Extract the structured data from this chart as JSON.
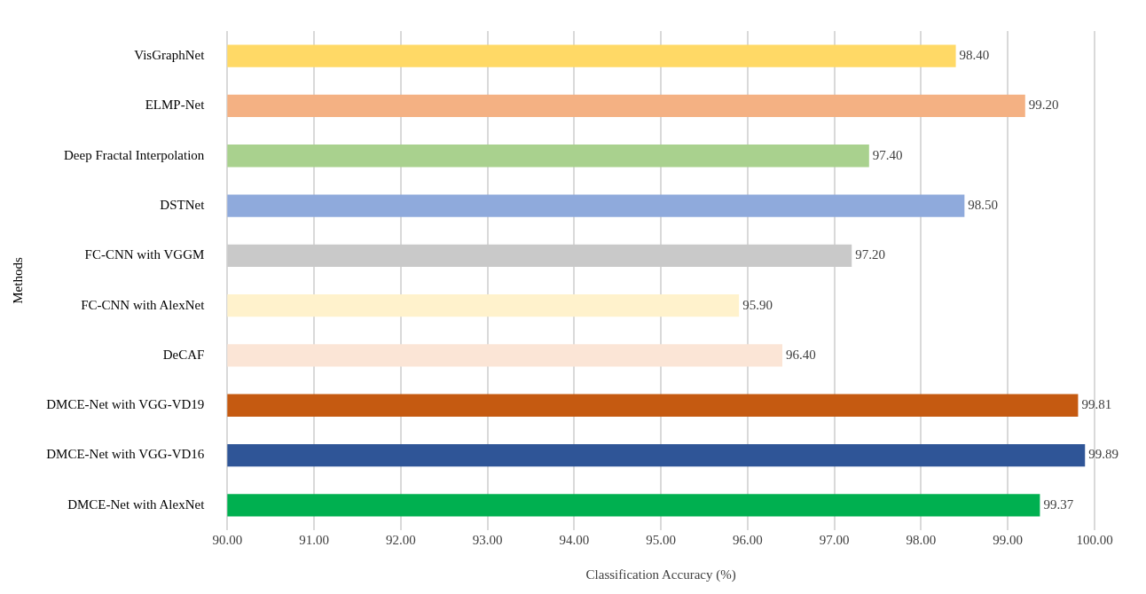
{
  "chart_data": {
    "type": "bar",
    "orientation": "horizontal",
    "xlabel": "Classification Accuracy (%)",
    "ylabel": "Methods",
    "categories": [
      "VisGraphNet",
      "ELMP-Net",
      "Deep Fractal Interpolation",
      "DSTNet",
      "FC-CNN with VGGM",
      "FC-CNN with AlexNet",
      "DeCAF",
      "DMCE-Net with VGG-VD19",
      "DMCE-Net with VGG-VD16",
      "DMCE-Net with AlexNet"
    ],
    "values": [
      98.4,
      99.2,
      97.4,
      98.5,
      97.2,
      95.9,
      96.4,
      99.81,
      99.89,
      99.37
    ],
    "value_labels": [
      "98.40",
      "99.20",
      "97.40",
      "98.50",
      "97.20",
      "95.90",
      "96.40",
      "99.81",
      "99.89",
      "99.37"
    ],
    "colors": [
      "#ffd966",
      "#f4b183",
      "#a9d18e",
      "#8faadc",
      "#c9c9c9",
      "#fff2cc",
      "#fbe5d6",
      "#c55a11",
      "#2f5597",
      "#00b050"
    ],
    "xlim": [
      90,
      100
    ],
    "xticks": [
      {
        "value": 90,
        "label": "90.00"
      },
      {
        "value": 91,
        "label": "91.00"
      },
      {
        "value": 92,
        "label": "92.00"
      },
      {
        "value": 93,
        "label": "93.00"
      },
      {
        "value": 94,
        "label": "94.00"
      },
      {
        "value": 95,
        "label": "95.00"
      },
      {
        "value": 96,
        "label": "96.00"
      },
      {
        "value": 97,
        "label": "97.00"
      },
      {
        "value": 98,
        "label": "98.00"
      },
      {
        "value": 99,
        "label": "99.00"
      },
      {
        "value": 100,
        "label": "100.00"
      }
    ],
    "grid": "x",
    "legend": false
  }
}
